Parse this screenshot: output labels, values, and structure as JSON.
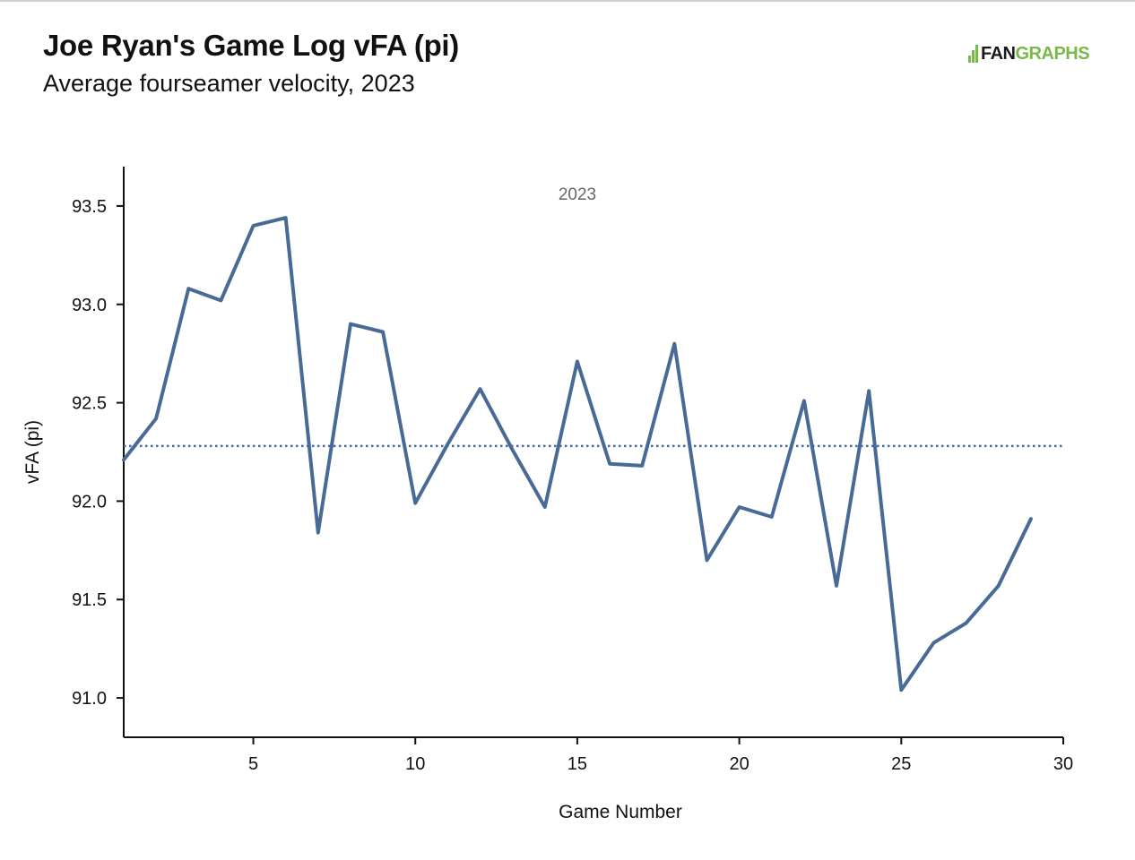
{
  "header": {
    "title": "Joe Ryan's Game Log vFA (pi)",
    "subtitle": "Average fourseamer velocity, 2023",
    "logo_fan": "FAN",
    "logo_graphs": "GRAPHS"
  },
  "colors": {
    "line": "#486a96",
    "average": "#486a96",
    "logo_green": "#79b84a"
  },
  "chart_data": {
    "type": "line",
    "xlabel": "Game Number",
    "ylabel": "vFA (pi)",
    "annotation": "2023",
    "xlim": [
      1,
      30
    ],
    "ylim": [
      90.8,
      93.7
    ],
    "xticks": [
      5,
      10,
      15,
      20,
      25,
      30
    ],
    "yticks": [
      91.0,
      91.5,
      92.0,
      92.5,
      93.0,
      93.5
    ],
    "average": 92.28,
    "x": [
      1,
      2,
      3,
      4,
      5,
      6,
      7,
      8,
      9,
      10,
      11,
      12,
      13,
      14,
      15,
      16,
      17,
      18,
      19,
      20,
      21,
      22,
      23,
      24,
      25,
      26,
      27,
      28,
      29
    ],
    "values": [
      92.21,
      92.42,
      93.08,
      93.02,
      93.4,
      93.44,
      91.84,
      92.9,
      92.86,
      91.99,
      92.29,
      92.57,
      92.26,
      91.97,
      92.71,
      92.19,
      92.18,
      92.8,
      91.7,
      91.97,
      91.92,
      92.51,
      91.57,
      92.56,
      91.04,
      91.28,
      91.38,
      91.57,
      91.91
    ]
  }
}
